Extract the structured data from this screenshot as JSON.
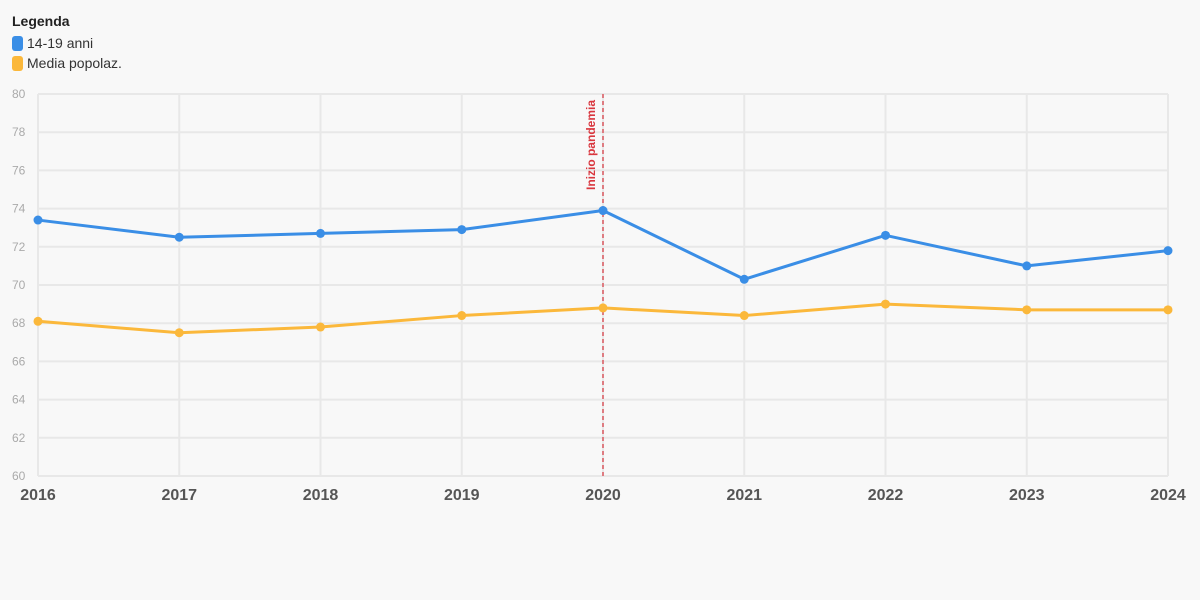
{
  "legend": {
    "title": "Legenda",
    "items": [
      {
        "label": "14-19 anni",
        "color": "#3a8ee6"
      },
      {
        "label": "Media popolaz.",
        "color": "#fbb83b"
      }
    ]
  },
  "chart_data": {
    "type": "line",
    "x": [
      "2016",
      "2017",
      "2018",
      "2019",
      "2020",
      "2021",
      "2022",
      "2023",
      "2024"
    ],
    "series": [
      {
        "name": "14-19 anni",
        "color": "#3a8ee6",
        "values": [
          73.4,
          72.5,
          72.7,
          72.9,
          73.9,
          70.3,
          72.6,
          71.0,
          71.8
        ]
      },
      {
        "name": "Media popolaz.",
        "color": "#fbb83b",
        "values": [
          68.1,
          67.5,
          67.8,
          68.4,
          68.8,
          68.4,
          69.0,
          68.7,
          68.7
        ]
      }
    ],
    "ylim": [
      60,
      80
    ],
    "yticks": [
      "60",
      "62",
      "64",
      "66",
      "68",
      "70",
      "72",
      "74",
      "76",
      "78",
      "80"
    ],
    "grid": true,
    "legend_position": "top-left",
    "annotation": {
      "x": "2020",
      "label": "Inizio pandemia",
      "color": "#d9363e"
    }
  }
}
